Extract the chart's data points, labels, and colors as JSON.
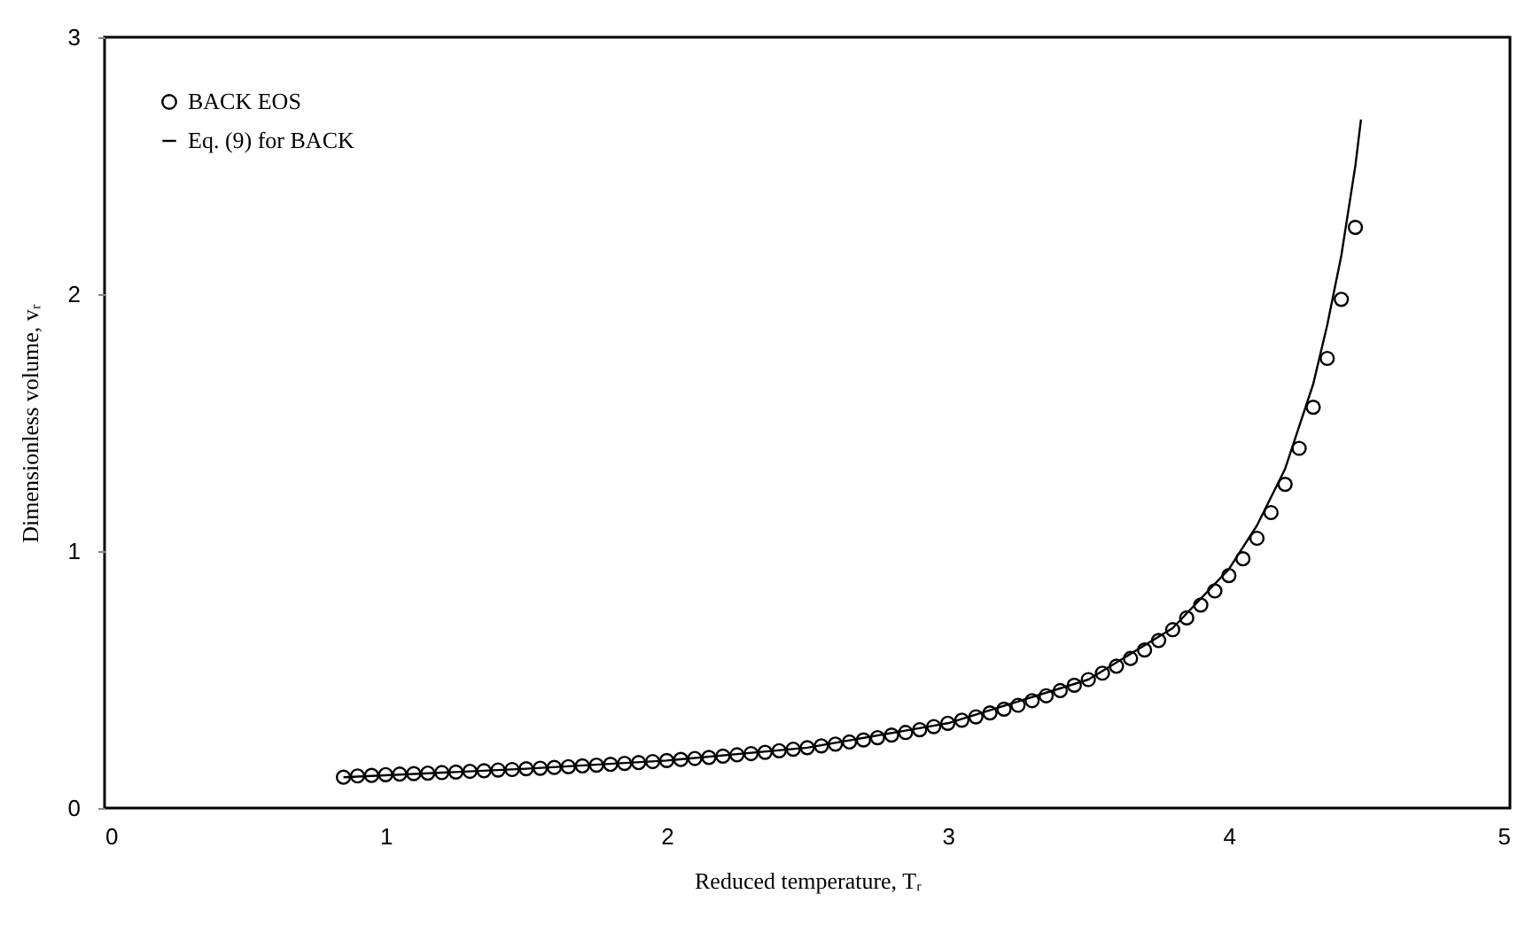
{
  "chart_data": {
    "type": "scatter",
    "xlabel": "Reduced temperature, Tᵣ",
    "ylabel": "Dimensionless volume, vᵣ",
    "xlim": [
      0,
      5
    ],
    "xticks": [
      0,
      1,
      2,
      3,
      4,
      5
    ],
    "ylim": [
      0,
      3
    ],
    "yticks": [
      0,
      1,
      2,
      3
    ],
    "grid": false,
    "legend": "top left",
    "series": [
      {
        "name": "BACK EOS",
        "marker": "circle",
        "color": "#000000",
        "x": [
          0.85,
          0.9,
          0.95,
          1.0,
          1.05,
          1.1,
          1.15,
          1.2,
          1.25,
          1.3,
          1.35,
          1.4,
          1.45,
          1.5,
          1.55,
          1.6,
          1.65,
          1.7,
          1.75,
          1.8,
          1.85,
          1.9,
          1.95,
          2.0,
          2.05,
          2.1,
          2.15,
          2.2,
          2.25,
          2.3,
          2.35,
          2.4,
          2.45,
          2.5,
          2.55,
          2.6,
          2.65,
          2.7,
          2.75,
          2.8,
          2.85,
          2.9,
          2.95,
          3.0,
          3.05,
          3.1,
          3.15,
          3.2,
          3.25,
          3.3,
          3.35,
          3.4,
          3.45,
          3.5,
          3.55,
          3.6,
          3.65,
          3.7,
          3.75,
          3.8,
          3.85,
          3.9,
          3.95,
          4.0,
          4.05,
          4.1,
          4.15,
          4.2,
          4.25,
          4.3,
          4.35,
          4.4,
          4.45
        ],
        "values": [
          0.12,
          0.125,
          0.127,
          0.13,
          0.132,
          0.134,
          0.136,
          0.138,
          0.14,
          0.143,
          0.145,
          0.148,
          0.15,
          0.153,
          0.155,
          0.158,
          0.161,
          0.164,
          0.167,
          0.17,
          0.174,
          0.177,
          0.181,
          0.185,
          0.189,
          0.193,
          0.197,
          0.202,
          0.207,
          0.212,
          0.217,
          0.223,
          0.229,
          0.235,
          0.242,
          0.249,
          0.257,
          0.265,
          0.274,
          0.284,
          0.294,
          0.305,
          0.317,
          0.33,
          0.342,
          0.355,
          0.37,
          0.385,
          0.4,
          0.418,
          0.437,
          0.457,
          0.478,
          0.5,
          0.525,
          0.552,
          0.582,
          0.615,
          0.652,
          0.694,
          0.74,
          0.79,
          0.845,
          0.905,
          0.97,
          1.05,
          1.15,
          1.26,
          1.4,
          1.56,
          1.75,
          1.98,
          2.26
        ]
      },
      {
        "name": "Eq. (9) for BACK",
        "type": "line",
        "line_style": "solid",
        "color": "#000000",
        "x": [
          0.85,
          1.5,
          2.0,
          2.5,
          3.0,
          3.5,
          3.8,
          4.0,
          4.1,
          4.2,
          4.3,
          4.35,
          4.4,
          4.45,
          4.47
        ],
        "values": [
          0.12,
          0.153,
          0.185,
          0.235,
          0.33,
          0.5,
          0.7,
          0.93,
          1.1,
          1.32,
          1.65,
          1.88,
          2.15,
          2.5,
          2.68
        ]
      }
    ]
  }
}
